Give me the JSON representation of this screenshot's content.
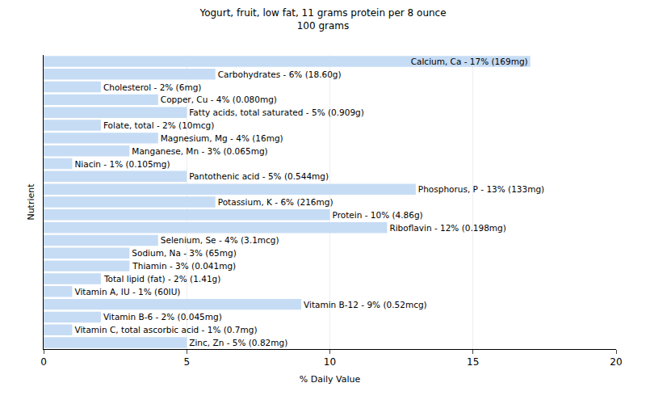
{
  "chart_data": {
    "type": "bar",
    "orientation": "horizontal",
    "title": "Yogurt, fruit, low fat, 11 grams protein per 8 ounce",
    "subtitle": "100 grams",
    "x_label": "% Daily Value",
    "y_label": "Nutrient",
    "categories": [
      "Calcium, Ca",
      "Carbohydrates",
      "Cholesterol",
      "Copper, Cu",
      "Fatty acids, total saturated",
      "Folate, total",
      "Magnesium, Mg",
      "Manganese, Mn",
      "Niacin",
      "Pantothenic acid",
      "Phosphorus, P",
      "Potassium, K",
      "Protein",
      "Riboflavin",
      "Selenium, Se",
      "Sodium, Na",
      "Thiamin",
      "Total lipid (fat)",
      "Vitamin A, IU",
      "Vitamin B-12",
      "Vitamin B-6",
      "Vitamin C, total ascorbic acid",
      "Zinc, Zn"
    ],
    "values": [
      17,
      6,
      2,
      4,
      5,
      2,
      4,
      3,
      1,
      5,
      13,
      6,
      10,
      12,
      4,
      3,
      3,
      2,
      1,
      9,
      2,
      1,
      5
    ],
    "value_labels": [
      "Calcium, Ca - 17% (169mg)",
      "Carbohydrates - 6% (18.60g)",
      "Cholesterol - 2% (6mg)",
      "Copper, Cu - 4% (0.080mg)",
      "Fatty acids, total saturated - 5% (0.909g)",
      "Folate, total - 2% (10mcg)",
      "Magnesium, Mg - 4% (16mg)",
      "Manganese, Mn - 3% (0.065mg)",
      "Niacin - 1% (0.105mg)",
      "Pantothenic acid - 5% (0.544mg)",
      "Phosphorus, P - 13% (133mg)",
      "Potassium, K - 6% (216mg)",
      "Protein - 10% (4.86g)",
      "Riboflavin - 12% (0.198mg)",
      "Selenium, Se - 4% (3.1mcg)",
      "Sodium, Na - 3% (65mg)",
      "Thiamin - 3% (0.041mg)",
      "Total lipid (fat) - 2% (1.41g)",
      "Vitamin A, IU - 1% (60IU)",
      "Vitamin B-12 - 9% (0.52mcg)",
      "Vitamin B-6 - 2% (0.045mg)",
      "Vitamin C, total ascorbic acid - 1% (0.7mg)",
      "Zinc, Zn - 5% (0.82mg)"
    ],
    "color": "#c6dcf5",
    "data_labels": true,
    "tick_labels": "x",
    "xlim": [
      0,
      20
    ],
    "xticks": [
      0,
      5,
      10,
      15,
      20
    ],
    "grid": true
  }
}
